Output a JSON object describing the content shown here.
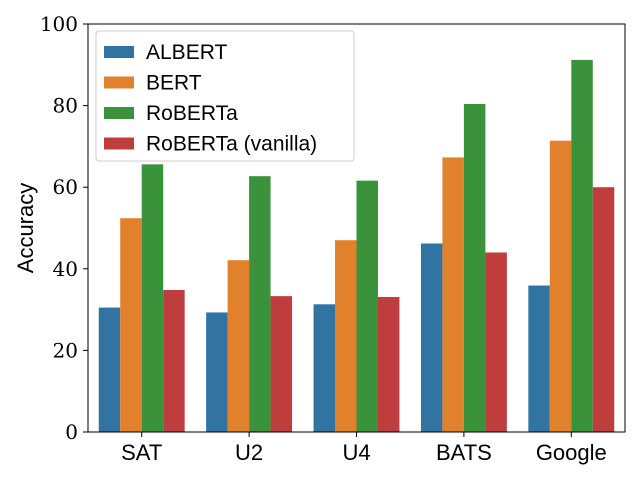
{
  "chart_data": {
    "type": "bar",
    "categories": [
      "SAT",
      "U2",
      "U4",
      "BATS",
      "Google"
    ],
    "series": [
      {
        "name": "ALBERT",
        "color": "#3274a1",
        "values": [
          30.5,
          29.3,
          31.3,
          46.2,
          35.9
        ]
      },
      {
        "name": "BERT",
        "color": "#e1812c",
        "values": [
          52.4,
          42.1,
          47.0,
          67.3,
          71.4
        ]
      },
      {
        "name": "RoBERTa",
        "color": "#3a923a",
        "values": [
          65.6,
          62.7,
          61.6,
          80.4,
          91.2
        ]
      },
      {
        "name": "RoBERTa (vanilla)",
        "color": "#c03d3e",
        "values": [
          34.8,
          33.3,
          33.1,
          44.0,
          60.0
        ]
      }
    ],
    "title": "",
    "xlabel": "",
    "ylabel": "Accuracy",
    "ylim": [
      0,
      100
    ],
    "yticks": [
      0,
      20,
      40,
      60,
      80,
      100
    ],
    "grid": false,
    "legend_position": "top-left"
  }
}
